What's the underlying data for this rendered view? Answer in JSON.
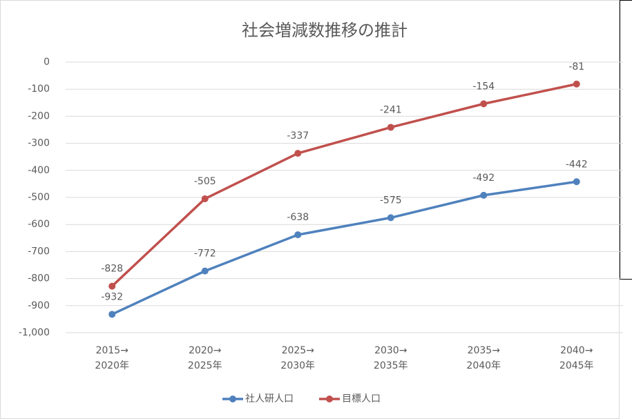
{
  "chart_data": {
    "type": "line",
    "title": "社会増減数推移の推計",
    "categories": [
      "2015→\n2020年",
      "2020→\n2025年",
      "2025→\n2030年",
      "2030→\n2035年",
      "2035→\n2040年",
      "2040→\n2045年"
    ],
    "series": [
      {
        "name": "社人研人口",
        "color": "#4f81bd",
        "values": [
          -932,
          -772,
          -638,
          -575,
          -492,
          -442
        ]
      },
      {
        "name": "目標人口",
        "color": "#c0504d",
        "values": [
          -828,
          -505,
          -337,
          -241,
          -154,
          -81
        ]
      }
    ],
    "ylim": [
      -1000,
      0
    ],
    "yticks": [
      0,
      -100,
      -200,
      -300,
      -400,
      -500,
      -600,
      -700,
      -800,
      -900,
      {
        "value": -1000,
        "label": "-1,000"
      }
    ],
    "grid": true,
    "legend": "bottom"
  }
}
